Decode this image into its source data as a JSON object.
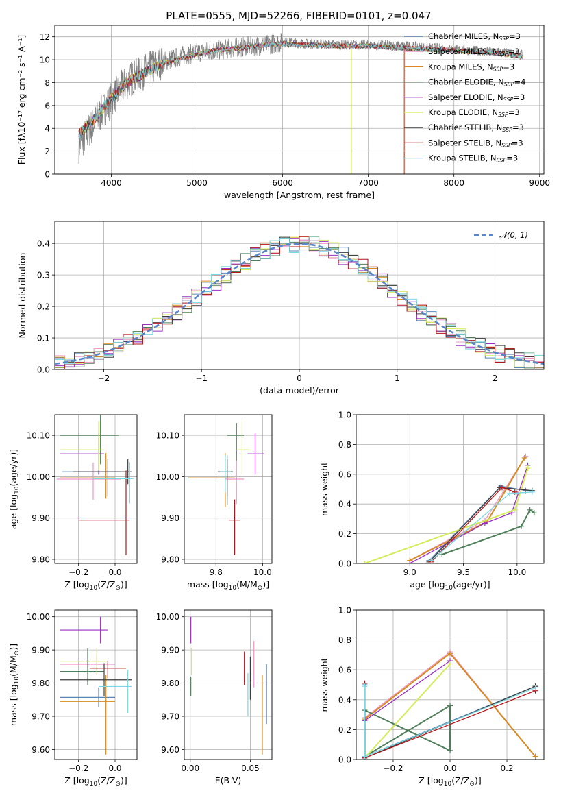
{
  "figure_title": "PLATE=0555, MJD=52266, FIBERID=0101, z=0.047",
  "models": [
    {
      "name": "Chabrier MILES",
      "nssp": "3",
      "color": "#5a86b8"
    },
    {
      "name": "Salpeter MILES",
      "nssp": "3",
      "color": "#ee97c6"
    },
    {
      "name": "Kroupa MILES",
      "nssp": "3",
      "color": "#d68a1f"
    },
    {
      "name": "Chabrier ELODIE",
      "nssp": "4",
      "color": "#4f7f5a"
    },
    {
      "name": "Salpeter ELODIE",
      "nssp": "3",
      "color": "#9a2fc2"
    },
    {
      "name": "Kroupa ELODIE",
      "nssp": "3",
      "color": "#d4ec58"
    },
    {
      "name": "Chabrier STELIB",
      "nssp": "3",
      "color": "#3e3e3e"
    },
    {
      "name": "Salpeter STELIB",
      "nssp": "3",
      "color": "#b3161a"
    },
    {
      "name": "Kroupa STELIB",
      "nssp": "3",
      "color": "#7bd7e0"
    }
  ],
  "chart_data": [
    {
      "id": "spectrum",
      "type": "line",
      "xlabel": "wavelength [Angstrom, rest frame]",
      "ylabel": "Flux [fλ10⁻¹⁷ erg cm⁻² s⁻¹ A⁻¹]",
      "xlim": [
        3340,
        9050
      ],
      "ylim": [
        0,
        13
      ],
      "xticks": [
        4000,
        5000,
        6000,
        7000,
        8000,
        9000
      ],
      "yticks": [
        0,
        2,
        4,
        6,
        8,
        10,
        12
      ],
      "legend": "upper-right",
      "observed_color": "#808080",
      "observed_envelope": [
        [
          3620,
          2.5
        ],
        [
          3800,
          4.5
        ],
        [
          4000,
          6.5
        ],
        [
          4200,
          8.2
        ],
        [
          4400,
          9.0
        ],
        [
          4600,
          9.8
        ],
        [
          4800,
          10.3
        ],
        [
          5000,
          10.6
        ],
        [
          5200,
          10.8
        ],
        [
          5500,
          11.1
        ],
        [
          5800,
          11.3
        ],
        [
          6000,
          11.5
        ],
        [
          6300,
          11.4
        ],
        [
          6600,
          11.3
        ],
        [
          7000,
          11.3
        ],
        [
          7400,
          11.2
        ],
        [
          7800,
          11.0
        ],
        [
          8200,
          10.8
        ],
        [
          8600,
          10.6
        ],
        [
          8800,
          10.4
        ]
      ],
      "model_envelope": [
        [
          3620,
          3.5
        ],
        [
          3800,
          4.8
        ],
        [
          4000,
          6.6
        ],
        [
          4200,
          8.1
        ],
        [
          4400,
          8.9
        ],
        [
          4600,
          9.7
        ],
        [
          4800,
          10.1
        ],
        [
          5000,
          10.5
        ],
        [
          5200,
          10.8
        ],
        [
          5500,
          11.0
        ],
        [
          5800,
          11.3
        ],
        [
          6000,
          11.4
        ],
        [
          6300,
          11.3
        ],
        [
          6600,
          11.2
        ],
        [
          7000,
          11.2
        ],
        [
          7400,
          11.0
        ],
        [
          7800,
          10.9
        ],
        [
          8200,
          10.7
        ],
        [
          8600,
          10.5
        ],
        [
          8800,
          10.3
        ]
      ],
      "dropouts": [
        {
          "x": 6800,
          "color": "#a7b83a"
        },
        {
          "x": 7420,
          "color": "#c8502a"
        }
      ]
    },
    {
      "id": "residual-hist",
      "type": "histogram",
      "xlabel": "(data-model)/error",
      "ylabel": "Normed distribution",
      "xlim": [
        -2.5,
        2.5
      ],
      "ylim": [
        0,
        0.47
      ],
      "xticks": [
        -2,
        -1,
        0,
        1,
        2
      ],
      "yticks": [
        0.0,
        0.1,
        0.2,
        0.3,
        0.4
      ],
      "bin_width": 0.1,
      "reference_curve": {
        "name": "𝒩(0, 1)",
        "color": "#5a86c8",
        "mean": 0,
        "sigma": 1
      },
      "legend": "upper-right"
    },
    {
      "id": "age-vs-z",
      "type": "errorbar",
      "xlabel": "Z [log10(Z/Z⊙)]",
      "ylabel": "age  [log10(age/yr)]",
      "xlim": [
        -0.33,
        0.12
      ],
      "ylim": [
        9.79,
        10.15
      ],
      "xticks": [
        -0.2,
        0.0
      ],
      "yticks": [
        9.8,
        9.9,
        10.0,
        10.1
      ],
      "points": [
        {
          "x": -0.04,
          "xerr": [
            0.25,
            0.07
          ],
          "y": 10.012,
          "yerr": [
            0.06,
            0.03
          ],
          "model": 0
        },
        {
          "x": -0.12,
          "xerr": [
            0.2,
            0.15
          ],
          "y": 9.994,
          "yerr": [
            0.05,
            0.04
          ],
          "model": 1
        },
        {
          "x": -0.05,
          "xerr": [
            0.25,
            0.05
          ],
          "y": 9.997,
          "yerr": [
            0.05,
            0.06
          ],
          "model": 2
        },
        {
          "x": -0.08,
          "xerr": [
            0.22,
            0.1
          ],
          "y": 10.1,
          "yerr": [
            0.07,
            0.06
          ],
          "model": 3
        },
        {
          "x": -0.09,
          "xerr": [
            0.21,
            0.03
          ],
          "y": 10.055,
          "yerr": [
            0.05,
            0.05
          ],
          "model": 4
        },
        {
          "x": -0.09,
          "xerr": [
            0.21,
            0.03
          ],
          "y": 10.065,
          "yerr": [
            0.05,
            0.07
          ],
          "model": 5
        },
        {
          "x": 0.07,
          "xerr": [
            0.3,
            0.02
          ],
          "y": 10.012,
          "yerr": [
            0.03,
            0.03
          ],
          "model": 6
        },
        {
          "x": 0.06,
          "xerr": [
            0.26,
            0.02
          ],
          "y": 9.895,
          "yerr": [
            0.085,
            0.12
          ],
          "model": 7
        },
        {
          "x": 0.08,
          "xerr": [
            0.2,
            0.02
          ],
          "y": 9.995,
          "yerr": [
            0.06,
            0.04
          ],
          "model": 8
        }
      ]
    },
    {
      "id": "age-vs-mass",
      "type": "errorbar",
      "xlabel": "mass [log10(M/M⊙)]",
      "ylabel": "",
      "xlim": [
        9.58,
        10.05
      ],
      "ylim": [
        9.79,
        10.15
      ],
      "xticks": [
        9.75,
        10.0
      ],
      "yticks": [
        9.8,
        9.9,
        10.0,
        10.1
      ],
      "points": [
        {
          "x": 9.81,
          "xerr": [
            0.05,
            0.03
          ],
          "y": 10.012,
          "yerr": [
            0.06,
            0.04
          ],
          "model": 0
        },
        {
          "x": 9.86,
          "xerr": [
            0.06,
            0.04
          ],
          "y": 9.994,
          "yerr": [
            0.06,
            0.05
          ],
          "model": 1
        },
        {
          "x": 9.8,
          "xerr": [
            0.2,
            0.05
          ],
          "y": 9.997,
          "yerr": [
            0.07,
            0.06
          ],
          "model": 2
        },
        {
          "x": 9.86,
          "xerr": [
            0.05,
            0.04
          ],
          "y": 10.1,
          "yerr": [
            0.06,
            0.03
          ],
          "model": 3
        },
        {
          "x": 9.96,
          "xerr": [
            0.04,
            0.05
          ],
          "y": 10.055,
          "yerr": [
            0.05,
            0.05
          ],
          "model": 4
        },
        {
          "x": 9.89,
          "xerr": [
            0.03,
            0.04
          ],
          "y": 10.065,
          "yerr": [
            0.06,
            0.07
          ],
          "model": 5
        },
        {
          "x": 9.81,
          "xerr": [
            0.05,
            0.03
          ],
          "y": 10.012,
          "yerr": [
            0.08,
            0.03
          ],
          "model": 6
        },
        {
          "x": 9.85,
          "xerr": [
            0.03,
            0.03
          ],
          "y": 9.895,
          "yerr": [
            0.085,
            0.05
          ],
          "model": 7
        },
        {
          "x": 9.8,
          "xerr": [
            0.03,
            0.03
          ],
          "y": 10.012,
          "yerr": [
            0.05,
            0.04
          ],
          "model": 8
        }
      ]
    },
    {
      "id": "weight-vs-age",
      "type": "line",
      "xlabel": "age  [log10(age/yr)]",
      "ylabel": "mass weight",
      "xlim": [
        8.5,
        10.25
      ],
      "ylim": [
        0,
        1.0
      ],
      "xticks": [
        9.0,
        9.5,
        10.0
      ],
      "yticks": [
        0.0,
        0.2,
        0.4,
        0.6,
        0.8,
        1.0
      ],
      "series": [
        {
          "model": 0,
          "x": [
            9.18,
            9.85,
            10.08
          ],
          "y": [
            0.02,
            0.52,
            0.49
          ]
        },
        {
          "model": 1,
          "x": [
            9.0,
            9.7,
            10.08
          ],
          "y": [
            0.02,
            0.29,
            0.72
          ]
        },
        {
          "model": 2,
          "x": [
            9.0,
            9.72,
            10.07
          ],
          "y": [
            0.02,
            0.28,
            0.71
          ]
        },
        {
          "model": 3,
          "x": [
            9.3,
            10.04,
            10.12,
            10.16
          ],
          "y": [
            0.06,
            0.25,
            0.36,
            0.34
          ]
        },
        {
          "model": 4,
          "x": [
            9.0,
            9.7,
            9.95,
            10.1
          ],
          "y": [
            0.0,
            0.27,
            0.34,
            0.66
          ]
        },
        {
          "model": 5,
          "x": [
            8.58,
            9.98,
            10.1
          ],
          "y": [
            0.0,
            0.36,
            0.64
          ]
        },
        {
          "model": 6,
          "x": [
            9.18,
            9.84,
            10.14
          ],
          "y": [
            0.01,
            0.51,
            0.49
          ]
        },
        {
          "model": 7,
          "x": [
            9.2,
            9.86,
            9.98
          ],
          "y": [
            0.01,
            0.51,
            0.48
          ]
        },
        {
          "model": 8,
          "x": [
            9.2,
            9.93,
            10.14
          ],
          "y": [
            0.02,
            0.47,
            0.48
          ]
        }
      ]
    },
    {
      "id": "mass-vs-z",
      "type": "errorbar",
      "xlabel": "Z [log10(Z/Z⊙)]",
      "ylabel": "mass [log10(M/M⊙)]",
      "xlim": [
        -0.33,
        0.12
      ],
      "ylim": [
        9.57,
        10.02
      ],
      "xticks": [
        -0.2,
        0.0
      ],
      "yticks": [
        9.6,
        9.7,
        9.8,
        9.9,
        10.0
      ],
      "points": [
        {
          "x": -0.09,
          "xerr": [
            0.21,
            0.09
          ],
          "y": 9.757,
          "yerr": [
            0.03,
            0.03
          ],
          "model": 0
        },
        {
          "x": -0.1,
          "xerr": [
            0.2,
            0.1
          ],
          "y": 9.857,
          "yerr": [
            0.03,
            0.03
          ],
          "model": 1
        },
        {
          "x": -0.05,
          "xerr": [
            0.25,
            0.05
          ],
          "y": 9.745,
          "yerr": [
            0.16,
            0.08
          ],
          "model": 2
        },
        {
          "x": -0.15,
          "xerr": [
            0.15,
            0.09
          ],
          "y": 9.835,
          "yerr": [
            0.04,
            0.07
          ],
          "model": 3
        },
        {
          "x": -0.08,
          "xerr": [
            0.22,
            0.04
          ],
          "y": 9.96,
          "yerr": [
            0.04,
            0.04
          ],
          "model": 4
        },
        {
          "x": -0.1,
          "xerr": [
            0.2,
            0.06
          ],
          "y": 9.866,
          "yerr": [
            0.04,
            0.04
          ],
          "model": 5
        },
        {
          "x": -0.06,
          "xerr": [
            0.24,
            0.15
          ],
          "y": 9.81,
          "yerr": [
            0.05,
            0.05
          ],
          "model": 6
        },
        {
          "x": -0.04,
          "xerr": [
            0.1,
            0.1
          ],
          "y": 9.845,
          "yerr": [
            0.03,
            0.02
          ],
          "model": 7
        },
        {
          "x": 0.07,
          "xerr": [
            0.16,
            0.02
          ],
          "y": 9.79,
          "yerr": [
            0.08,
            0.05
          ],
          "model": 8
        }
      ]
    },
    {
      "id": "mass-vs-ebv",
      "type": "errorbar",
      "xlabel": "E(B-V)",
      "ylabel": "",
      "xlim": [
        -0.005,
        0.068
      ],
      "ylim": [
        9.57,
        10.02
      ],
      "xticks": [
        0.0,
        0.05
      ],
      "yticks": [
        9.6,
        9.7,
        9.8,
        9.9,
        10.0
      ],
      "points": [
        {
          "x": 0.0635,
          "xerr": [
            0,
            0
          ],
          "y": 9.757,
          "yerr": [
            0.08,
            0.1
          ],
          "model": 0
        },
        {
          "x": 0.053,
          "xerr": [
            0,
            0
          ],
          "y": 9.857,
          "yerr": [
            0.07,
            0.07
          ],
          "model": 1
        },
        {
          "x": 0.06,
          "xerr": [
            0,
            0
          ],
          "y": 9.745,
          "yerr": [
            0.16,
            0.08
          ],
          "model": 2
        },
        {
          "x": 0.0005,
          "xerr": [
            0,
            0
          ],
          "y": 9.79,
          "yerr": [
            0.03,
            0.03
          ],
          "model": 3
        },
        {
          "x": 0.0005,
          "xerr": [
            0,
            0
          ],
          "y": 9.96,
          "yerr": [
            0.04,
            0.04
          ],
          "model": 4
        },
        {
          "x": 0.001,
          "xerr": [
            0,
            0
          ],
          "y": 9.866,
          "yerr": [
            0.04,
            0.04
          ],
          "model": 5
        },
        {
          "x": 0.05,
          "xerr": [
            0,
            0
          ],
          "y": 9.81,
          "yerr": [
            0.06,
            0.07
          ],
          "model": 6
        },
        {
          "x": 0.045,
          "xerr": [
            0,
            0
          ],
          "y": 9.845,
          "yerr": [
            0.05,
            0.05
          ],
          "model": 7
        },
        {
          "x": 0.048,
          "xerr": [
            0,
            0
          ],
          "y": 9.79,
          "yerr": [
            0.09,
            0.04
          ],
          "model": 8
        }
      ]
    },
    {
      "id": "weight-vs-z",
      "type": "line",
      "xlabel": "Z [log10(Z/Z⊙)]",
      "ylabel": "mass weight",
      "xlim": [
        -0.33,
        0.33
      ],
      "ylim": [
        0,
        1.0
      ],
      "xticks": [
        -0.2,
        0.0,
        0.2
      ],
      "yticks": [
        0.0,
        0.2,
        0.4,
        0.6,
        0.8,
        1.0
      ],
      "series": [
        {
          "model": 0,
          "x": [
            -0.3,
            -0.3,
            0.3
          ],
          "y": [
            0.5,
            0.02,
            0.49
          ]
        },
        {
          "model": 1,
          "x": [
            -0.3,
            0.0,
            0.3
          ],
          "y": [
            0.28,
            0.72,
            0.02
          ]
        },
        {
          "model": 2,
          "x": [
            -0.3,
            0.0,
            0.3
          ],
          "y": [
            0.27,
            0.71,
            0.02
          ]
        },
        {
          "model": 3,
          "x": [
            -0.3,
            0.0,
            0.0,
            -0.3,
            -0.3
          ],
          "y": [
            0.33,
            0.06,
            0.36,
            0.02,
            0.33
          ]
        },
        {
          "model": 4,
          "x": [
            -0.3,
            0.0
          ],
          "y": [
            0.26,
            0.66
          ]
        },
        {
          "model": 5,
          "x": [
            -0.3,
            0.0
          ],
          "y": [
            0.01,
            0.64
          ]
        },
        {
          "model": 6,
          "x": [
            -0.3,
            -0.3,
            0.3
          ],
          "y": [
            0.51,
            0.01,
            0.49
          ]
        },
        {
          "model": 7,
          "x": [
            -0.3,
            -0.3,
            0.3
          ],
          "y": [
            0.51,
            0.01,
            0.46
          ]
        },
        {
          "model": 8,
          "x": [
            -0.3,
            -0.3,
            0.3
          ],
          "y": [
            0.49,
            0.02,
            0.48
          ]
        }
      ]
    }
  ]
}
